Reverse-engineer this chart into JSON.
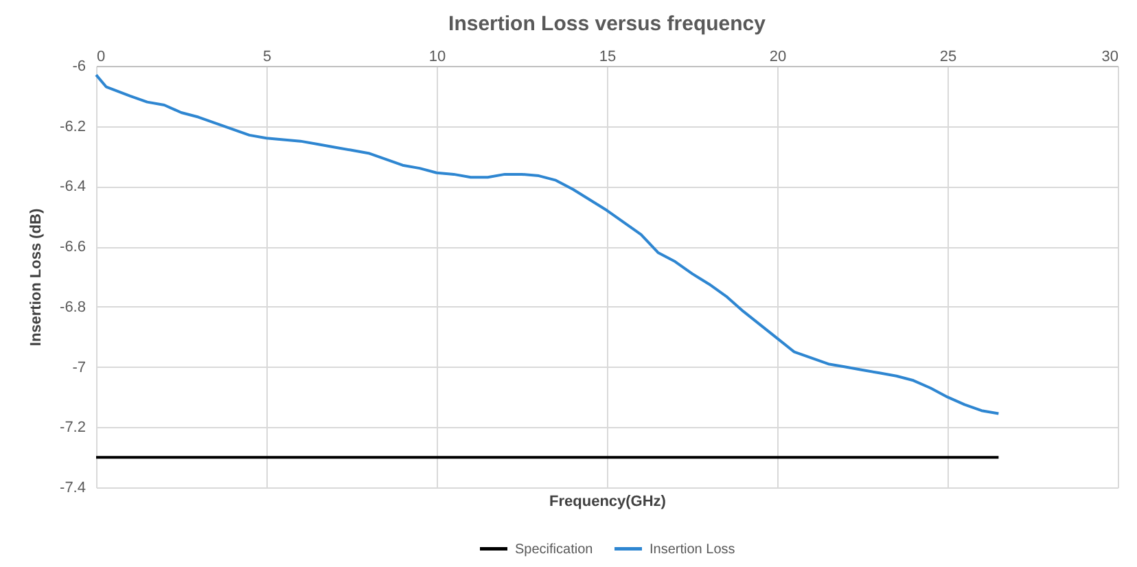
{
  "chart_data": {
    "type": "line",
    "title": "Insertion Loss versus frequency",
    "xlabel": "Frequency(GHz)",
    "ylabel": "Insertion Loss (dB)",
    "xlim": [
      0,
      30
    ],
    "xticks": [
      0,
      5,
      10,
      15,
      20,
      25,
      30
    ],
    "ylim": [
      -7.4,
      -6
    ],
    "yticks": [
      -7.4,
      -7.2,
      -7,
      -6.8,
      -6.6,
      -6.4,
      -6.2,
      -6
    ],
    "grid": true,
    "legend": "bottom",
    "series": [
      {
        "name": "Specification",
        "color": "#000000",
        "x": [
          0,
          26.5
        ],
        "values": [
          -7.3,
          -7.3
        ]
      },
      {
        "name": "Insertion Loss",
        "color": "#2e86d1",
        "x": [
          0,
          0.3,
          1,
          1.5,
          2,
          2.5,
          3,
          3.5,
          4,
          4.5,
          5,
          6,
          6.5,
          7,
          7.5,
          8,
          8.5,
          9,
          9.5,
          10,
          10.5,
          11,
          11.5,
          12,
          12.5,
          13,
          13.5,
          14,
          15,
          15.5,
          16,
          16.5,
          17,
          17.5,
          18,
          18.5,
          19,
          19.5,
          20,
          20.5,
          21,
          21.5,
          22,
          22.5,
          23,
          23.5,
          24,
          24.5,
          25,
          25.5,
          26,
          26.5
        ],
        "values": [
          -6.03,
          -6.07,
          -6.1,
          -6.12,
          -6.13,
          -6.155,
          -6.17,
          -6.19,
          -6.21,
          -6.23,
          -6.24,
          -6.25,
          -6.26,
          -6.27,
          -6.28,
          -6.29,
          -6.31,
          -6.33,
          -6.34,
          -6.355,
          -6.36,
          -6.37,
          -6.37,
          -6.36,
          -6.36,
          -6.365,
          -6.38,
          -6.41,
          -6.48,
          -6.52,
          -6.56,
          -6.62,
          -6.65,
          -6.69,
          -6.725,
          -6.765,
          -6.815,
          -6.86,
          -6.905,
          -6.95,
          -6.97,
          -6.99,
          -7.0,
          -7.01,
          -7.02,
          -7.03,
          -7.045,
          -7.07,
          -7.1,
          -7.125,
          -7.145,
          -7.155
        ]
      }
    ]
  }
}
